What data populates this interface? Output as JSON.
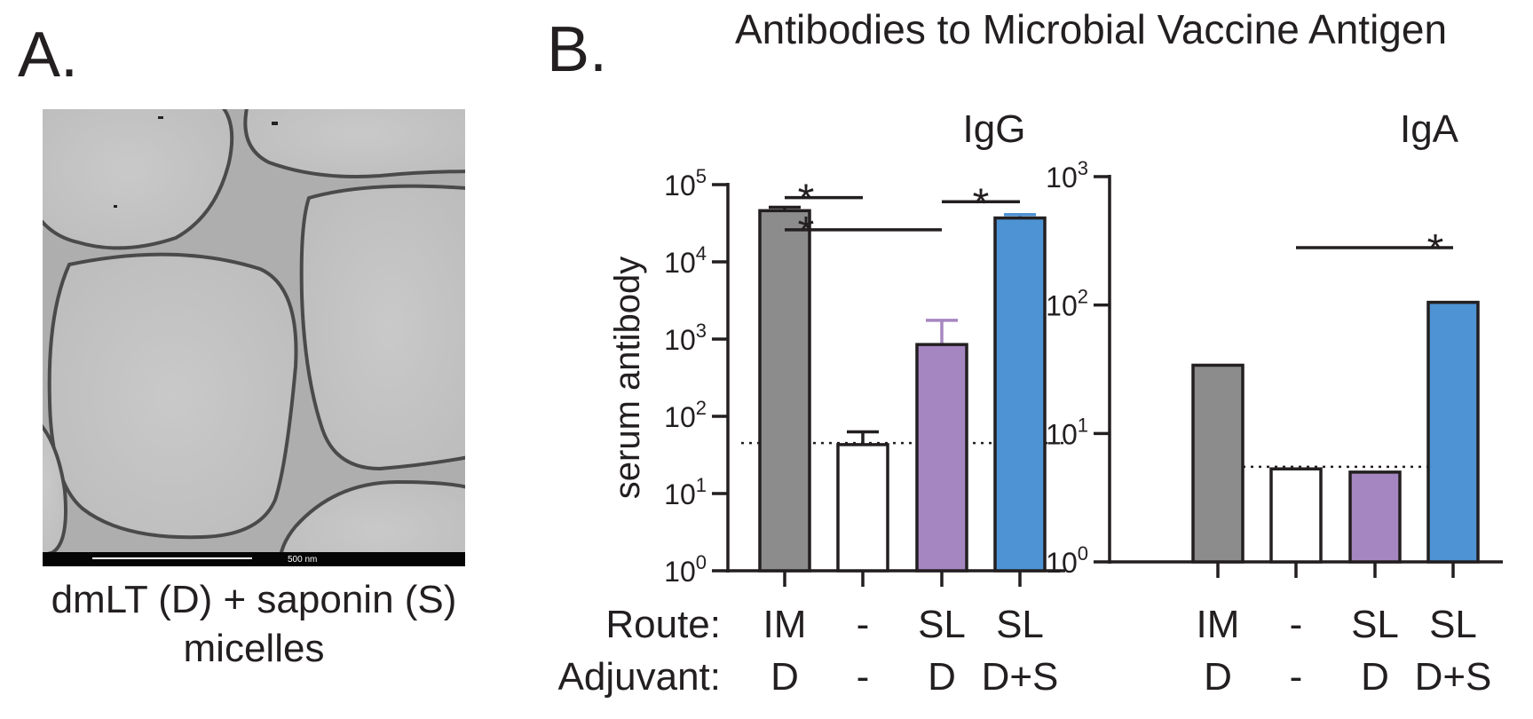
{
  "panel_a": {
    "letter": "A.",
    "caption_line1": "dmLT (D) + saponin (S)",
    "caption_line2": "micelles",
    "scale_label": "500 nm"
  },
  "panel_b": {
    "letter": "B.",
    "title": "Antibodies to Microbial Vaccine Antigen"
  },
  "row_labels": {
    "route": "Route:",
    "adjuvant": "Adjuvant:"
  },
  "chart_data": [
    {
      "type": "bar",
      "title": "IgG",
      "ylabel": "serum antibody",
      "yscale": "log",
      "ylim": [
        1,
        100000
      ],
      "yticks": [
        {
          "base": "10",
          "exp": "0",
          "value": 1
        },
        {
          "base": "10",
          "exp": "1",
          "value": 10
        },
        {
          "base": "10",
          "exp": "2",
          "value": 100
        },
        {
          "base": "10",
          "exp": "3",
          "value": 1000
        },
        {
          "base": "10",
          "exp": "4",
          "value": 10000
        },
        {
          "base": "10",
          "exp": "5",
          "value": 100000
        }
      ],
      "categories": [
        {
          "route": "IM",
          "adjuvant": "D"
        },
        {
          "route": "-",
          "adjuvant": "-"
        },
        {
          "route": "SL",
          "adjuvant": "D"
        },
        {
          "route": "SL",
          "adjuvant": "D+S"
        }
      ],
      "values": [
        46000,
        43,
        850,
        37000
      ],
      "errors": [
        51000,
        63,
        1750,
        41000
      ],
      "colors": [
        "#8c8c8c",
        "#ffffff",
        "#a686c1",
        "#4e93d3"
      ],
      "error_colors": [
        "#231f20",
        "#231f20",
        "#a686c1",
        "#4e93d3"
      ],
      "detection_limit": 45,
      "significance": [
        {
          "from": 0,
          "to": 2,
          "y": 26000,
          "label": "*"
        },
        {
          "from": 0,
          "to": 1,
          "y": 68000,
          "label": "*"
        },
        {
          "from": 2,
          "to": 3,
          "y": 60000,
          "label": "*"
        }
      ]
    },
    {
      "type": "bar",
      "title": "IgA",
      "ylabel": "",
      "yscale": "log",
      "ylim": [
        1,
        1000
      ],
      "yticks": [
        {
          "base": "10",
          "exp": "0",
          "value": 1
        },
        {
          "base": "10",
          "exp": "1",
          "value": 10
        },
        {
          "base": "10",
          "exp": "2",
          "value": 100
        },
        {
          "base": "10",
          "exp": "3",
          "value": 1000
        }
      ],
      "categories": [
        {
          "route": "IM",
          "adjuvant": "D"
        },
        {
          "route": "-",
          "adjuvant": "-"
        },
        {
          "route": "SL",
          "adjuvant": "D"
        },
        {
          "route": "SL",
          "adjuvant": "D+S"
        }
      ],
      "values": [
        34,
        5.3,
        5.0,
        105
      ],
      "colors": [
        "#8c8c8c",
        "#ffffff",
        "#a686c1",
        "#4e93d3"
      ],
      "detection_limit": 5.5,
      "significance": [
        {
          "from": 1,
          "to": 3,
          "y": 280,
          "label": "*"
        }
      ]
    }
  ]
}
